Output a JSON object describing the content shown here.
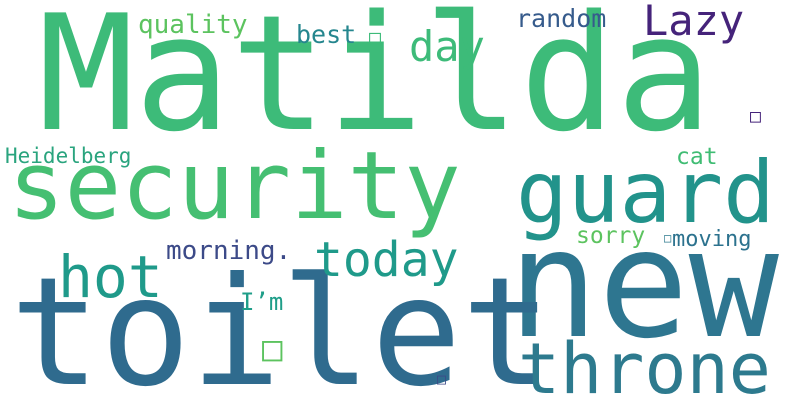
{
  "words": [
    {
      "id": "matilda",
      "text": "Matilda",
      "color": "#3dbb79"
    },
    {
      "id": "security",
      "text": "security",
      "color": "#45bf72"
    },
    {
      "id": "guard",
      "text": "guard",
      "color": "#22938b"
    },
    {
      "id": "new",
      "text": "new",
      "color": "#2e7690"
    },
    {
      "id": "toilet",
      "text": "toilet",
      "color": "#2f6b8e"
    },
    {
      "id": "throne",
      "text": "throne",
      "color": "#2d7a8e"
    },
    {
      "id": "hot",
      "text": "hot",
      "color": "#1f9a8a"
    },
    {
      "id": "today",
      "text": "today",
      "color": "#1f9a8a"
    },
    {
      "id": "lazy",
      "text": "Lazy",
      "color": "#45237a"
    },
    {
      "id": "day",
      "text": "day",
      "color": "#3dbb79"
    },
    {
      "id": "quality",
      "text": "quality",
      "color": "#5cc35f"
    },
    {
      "id": "best",
      "text": "best",
      "color": "#25868e"
    },
    {
      "id": "random",
      "text": "random",
      "color": "#365b8c"
    },
    {
      "id": "heidelberg",
      "text": "Heidelberg",
      "color": "#2aa47e"
    },
    {
      "id": "cat",
      "text": "cat",
      "color": "#3fbc73"
    },
    {
      "id": "morning",
      "text": "morning.",
      "color": "#3c4a88"
    },
    {
      "id": "sorry",
      "text": "sorry",
      "color": "#5cc35f"
    },
    {
      "id": "moving",
      "text": "moving",
      "color": "#2c728e"
    },
    {
      "id": "im",
      "text": "I’m",
      "color": "#1f9e89"
    },
    {
      "id": "glyph1",
      "text": "□",
      "color": "#3dbb79"
    },
    {
      "id": "glyph2",
      "text": "□",
      "color": "#5cc35f"
    },
    {
      "id": "glyph3",
      "text": "□",
      "color": "#45237a"
    },
    {
      "id": "glyph4",
      "text": "□",
      "color": "#3c4a88"
    },
    {
      "id": "glyph5",
      "text": "□",
      "color": "#2d7a8e"
    }
  ]
}
